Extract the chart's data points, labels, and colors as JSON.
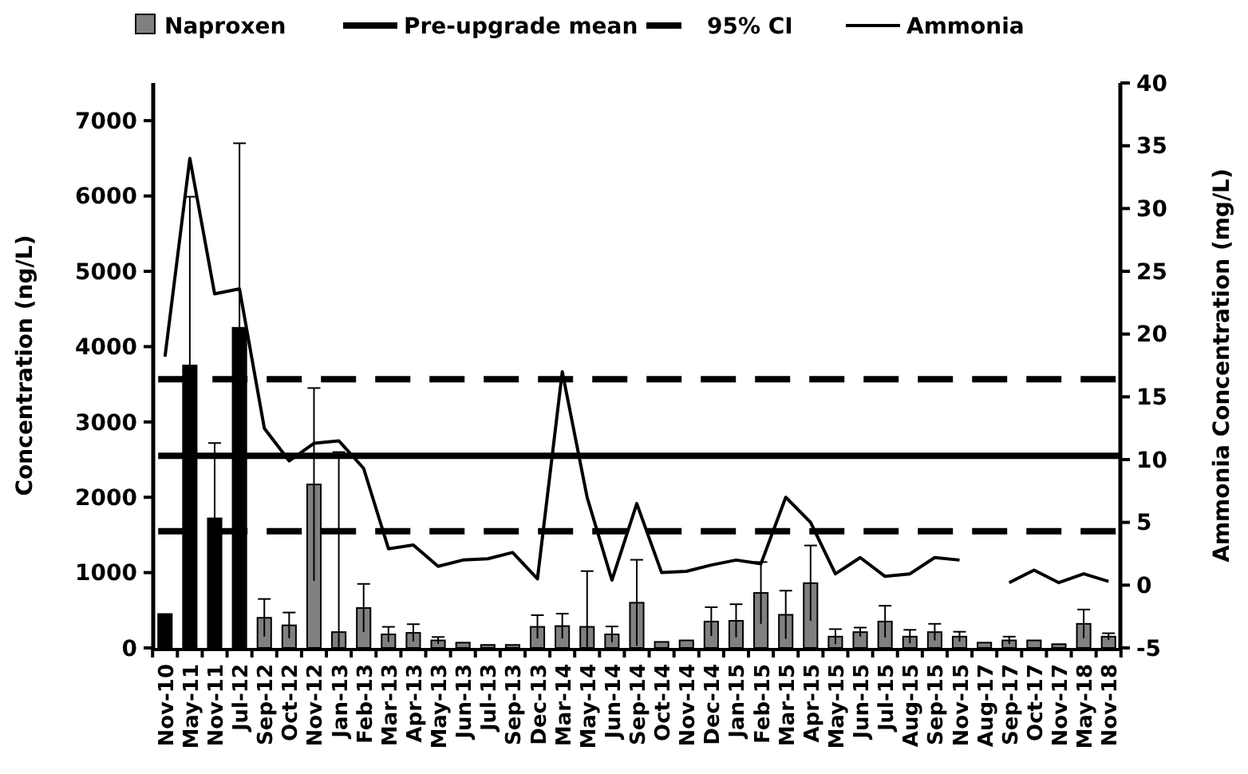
{
  "chart_data": {
    "type": "bar",
    "categories": [
      "Nov-10",
      "May-11",
      "Nov-11",
      "Jul-12",
      "Sep-12",
      "Oct-12",
      "Nov-12",
      "Jan-13",
      "Feb-13",
      "Mar-13",
      "Apr-13",
      "May-13",
      "Jun-13",
      "Jul-13",
      "Sep-13",
      "Dec-13",
      "Mar-14",
      "May-14",
      "Jun-14",
      "Sep-14",
      "Oct-14",
      "Nov-14",
      "Dec-14",
      "Jan-15",
      "Feb-15",
      "Mar-15",
      "Apr-15",
      "May-15",
      "Jun-15",
      "Jul-15",
      "Aug-15",
      "Sep-15",
      "Nov-15",
      "Aug-17",
      "Sep-17",
      "Oct-17",
      "Nov-17",
      "May-18",
      "Nov-18"
    ],
    "series": [
      {
        "name": "Naproxen",
        "color": "#808080",
        "colors": [
          "#000000",
          "#000000",
          "#000000",
          "#000000",
          "#808080",
          "#808080",
          "#808080",
          "#808080",
          "#808080",
          "#808080",
          "#808080",
          "#808080",
          "#808080",
          "#808080",
          "#808080",
          "#808080",
          "#808080",
          "#808080",
          "#808080",
          "#808080",
          "#808080",
          "#808080",
          "#808080",
          "#808080",
          "#808080",
          "#808080",
          "#808080",
          "#808080",
          "#808080",
          "#808080",
          "#808080",
          "#808080",
          "#808080",
          "#808080",
          "#808080",
          "#808080",
          "#808080",
          "#808080",
          "#808080"
        ],
        "values": [
          450,
          3750,
          1720,
          4250,
          400,
          300,
          2170,
          210,
          530,
          180,
          200,
          100,
          70,
          40,
          40,
          280,
          290,
          280,
          180,
          600,
          80,
          100,
          350,
          360,
          730,
          440,
          860,
          150,
          210,
          350,
          150,
          210,
          150,
          70,
          100,
          100,
          50,
          320,
          150
        ],
        "errors": [
          null,
          2240,
          1000,
          2450,
          250,
          170,
          1280,
          [
            0,
            2600
          ],
          320,
          100,
          115,
          45,
          null,
          null,
          null,
          155,
          165,
          [
            0,
            1020
          ],
          105,
          570,
          null,
          null,
          190,
          220,
          410,
          320,
          500,
          100,
          60,
          210,
          90,
          110,
          65,
          null,
          50,
          null,
          null,
          190,
          45
        ]
      },
      {
        "name": "Ammonia",
        "type": "line",
        "axis": "y2",
        "color": "#000000",
        "values": [
          18.2,
          34,
          23.2,
          23.6,
          12.5,
          9.9,
          11.3,
          11.5,
          9.3,
          2.9,
          3.2,
          1.5,
          2.0,
          2.1,
          2.6,
          0.5,
          17,
          7,
          0.4,
          6.5,
          1.0,
          1.1,
          1.6,
          2.0,
          1.7,
          7,
          5,
          0.9,
          2.2,
          0.7,
          0.9,
          2.2,
          2.0,
          null,
          0.2,
          1.2,
          0.2,
          0.9,
          0.3
        ]
      }
    ],
    "ref_lines": [
      {
        "axis": "y2",
        "value": 10.3,
        "label": "Pre-upgrade mean",
        "line_style": "solid"
      },
      {
        "axis": "y2",
        "value": 16.4,
        "label": "95% CI",
        "line_style": "dashed"
      },
      {
        "axis": "y2",
        "value": 4.3,
        "line_style": "dashed"
      }
    ],
    "ylabel": "Concentration (ng/L)",
    "y2label": "Ammonia Concentration (mg/L)",
    "ylim": [
      0,
      7500
    ],
    "yticks": [
      0,
      1000,
      2000,
      3000,
      4000,
      5000,
      6000,
      7000
    ],
    "y2lim": [
      -5,
      40
    ],
    "y2ticks": [
      -5,
      0,
      5,
      10,
      15,
      20,
      25,
      30,
      35,
      40
    ],
    "legend": "top",
    "grid": false
  }
}
